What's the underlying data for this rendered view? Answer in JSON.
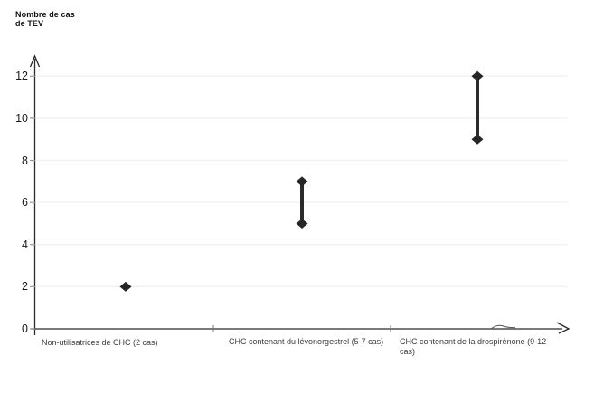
{
  "title": {
    "line1": "Nombre de cas",
    "line2": "de TEV"
  },
  "chart_data": {
    "type": "scatter",
    "subtype": "range-dumbbell",
    "title": "Nombre de cas de TEV",
    "ylabel": "Nombre de cas de TEV",
    "xlabel": "",
    "categories": [
      "Non-utilisatrices de CHC (2 cas)",
      "CHC contenant du lévonorgestrel (5-7 cas)",
      "CHC contenant de la drospirénone (9-12 cas)"
    ],
    "series": [
      {
        "name": "Nombre de cas de TEV",
        "ranges": [
          {
            "category": "Non-utilisatrices de CHC (2 cas)",
            "min": 2,
            "max": 2
          },
          {
            "category": "CHC contenant du lévonorgestrel (5-7 cas)",
            "min": 5,
            "max": 7
          },
          {
            "category": "CHC contenant de la drospirénone (9-12 cas)",
            "min": 9,
            "max": 12
          }
        ]
      }
    ],
    "yticks": [
      0,
      2,
      4,
      6,
      8,
      10,
      12
    ],
    "ylim": [
      0,
      13
    ],
    "grid": true,
    "legend": "none",
    "marker": "diamond",
    "colors": {
      "marker": "#262626",
      "range_bar": "#2b2b2b",
      "grid": "#f2f2f2",
      "axis": "#2a2a2a",
      "tick": "#999999",
      "tick_label": "#1a1a1a",
      "category_label": "#3c3c3c",
      "background": "#ffffff"
    }
  }
}
